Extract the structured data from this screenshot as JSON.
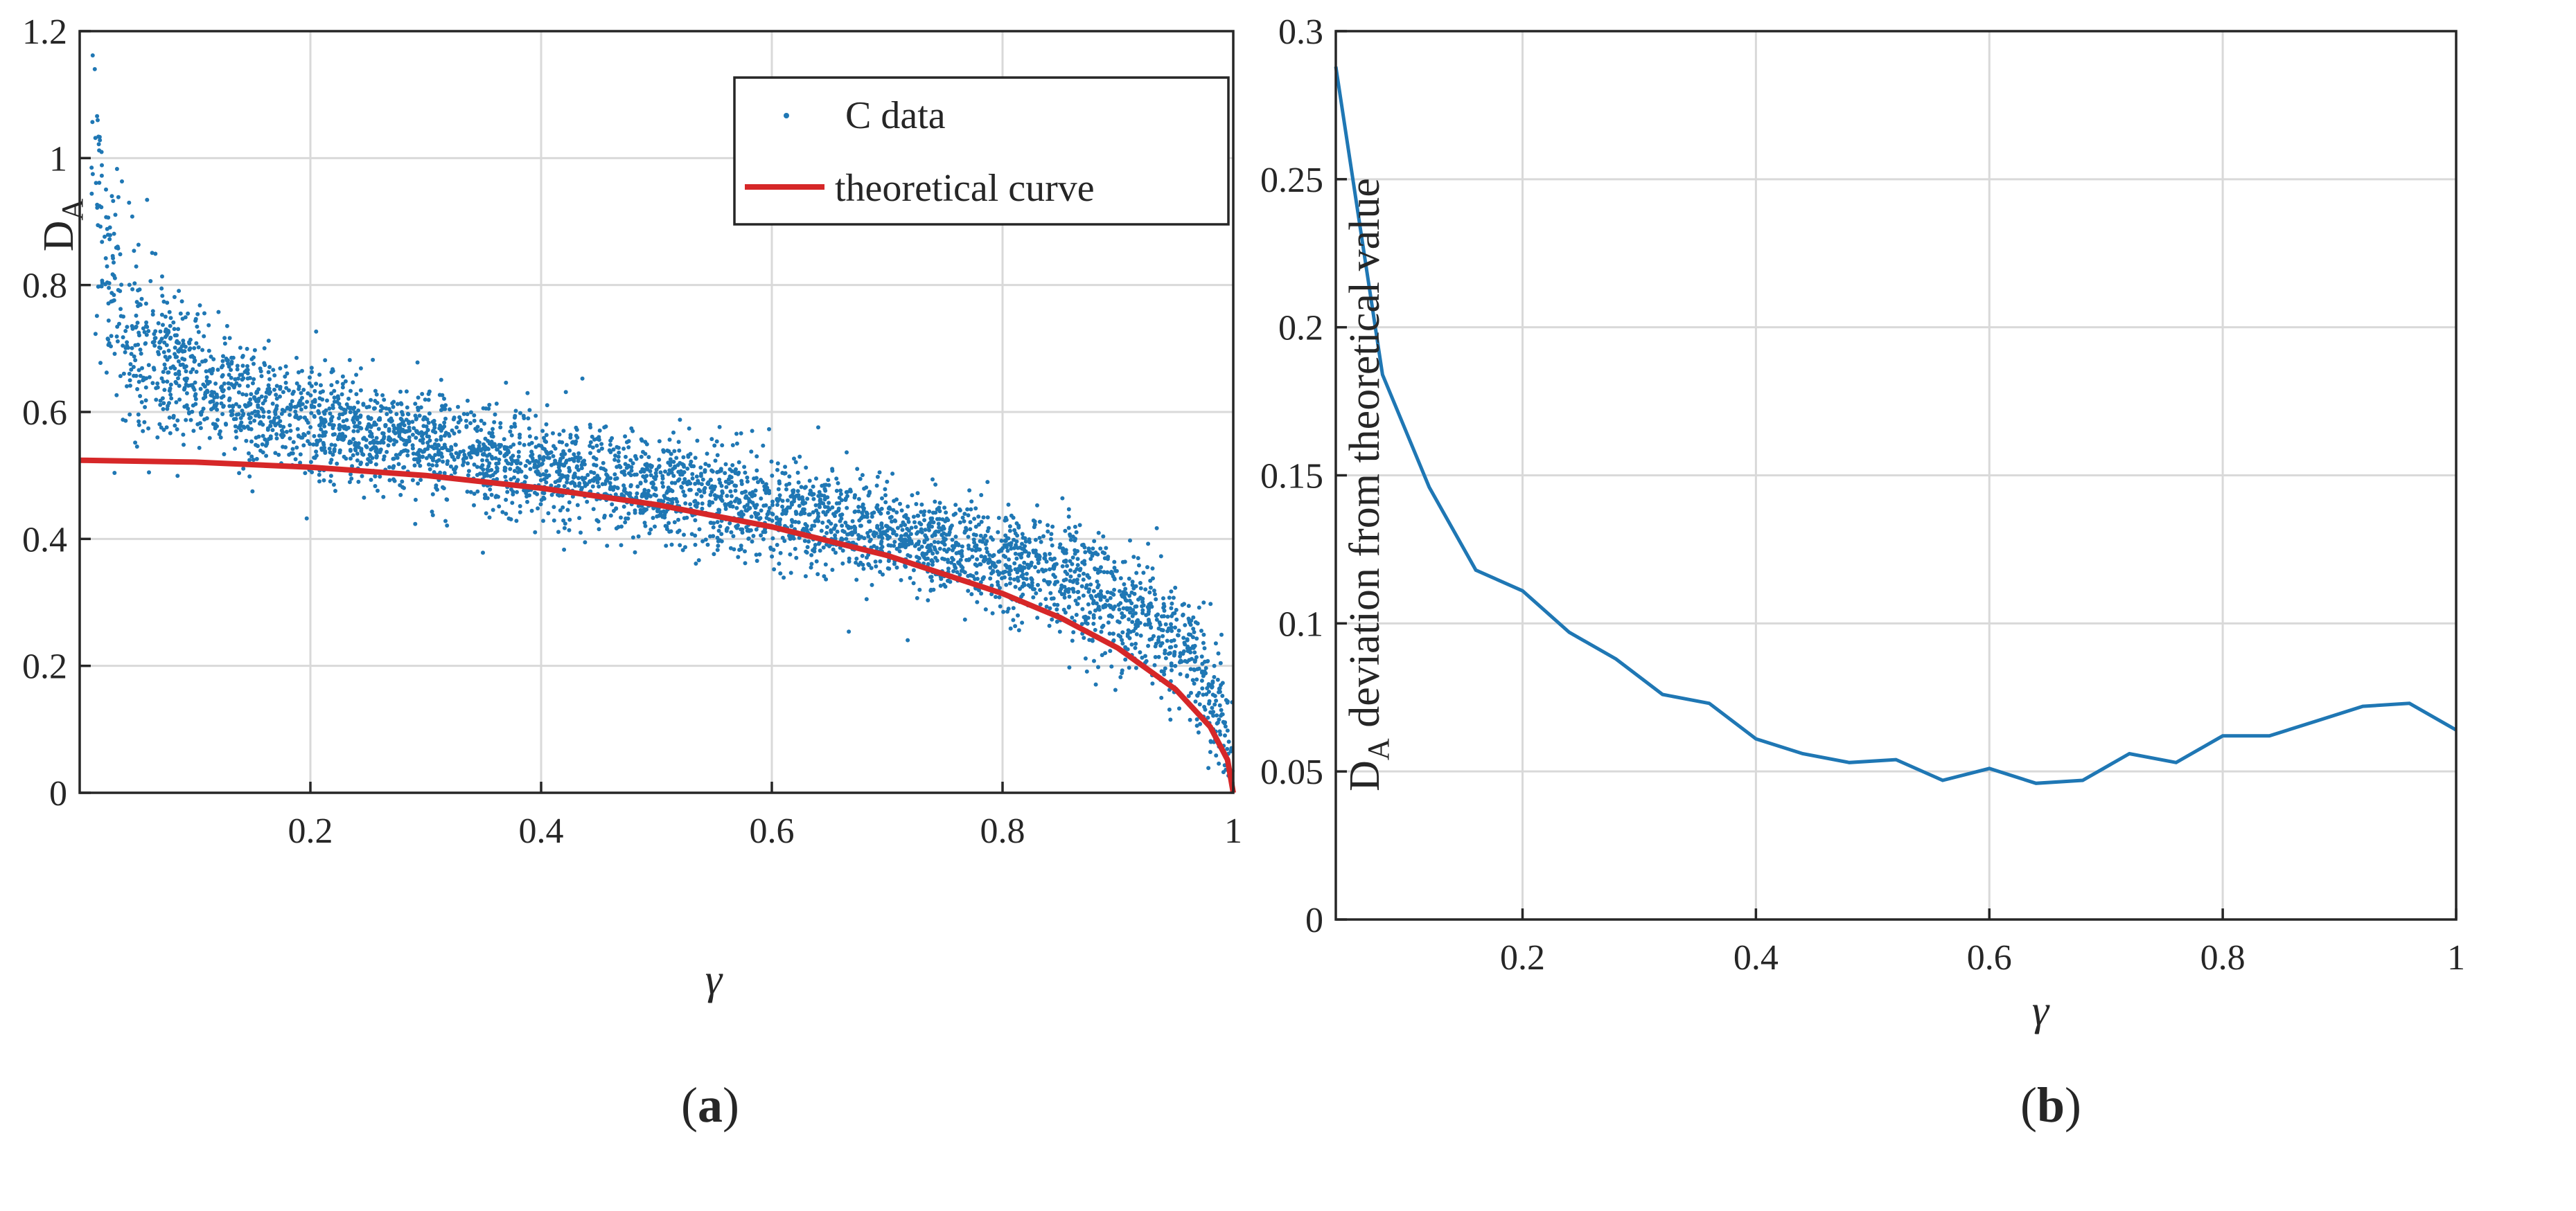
{
  "chart_data": [
    {
      "id": "a",
      "type": "scatter",
      "caption": "a",
      "xlabel": "γ",
      "ylabel_main": "D",
      "ylabel_sub": "A",
      "xlim": [
        0,
        1
      ],
      "ylim": [
        0,
        1.2
      ],
      "xticks": [
        0.2,
        0.4,
        0.6,
        0.8,
        1
      ],
      "xtick_labels": [
        "0.2",
        "0.4",
        "0.6",
        "0.8",
        "1"
      ],
      "yticks": [
        0,
        0.2,
        0.4,
        0.6,
        0.8,
        1,
        1.2
      ],
      "ytick_labels": [
        "0",
        "0.2",
        "0.4",
        "0.6",
        "0.8",
        "1",
        "1.2"
      ],
      "grid": true,
      "legend_position": "top-right",
      "series": [
        {
          "name": "C data",
          "kind": "scatter",
          "color": "#1f77b4",
          "note": "about 5000 points spread around the trend below",
          "trend_x": [
            0.01,
            0.03,
            0.05,
            0.08,
            0.1,
            0.15,
            0.2,
            0.3,
            0.4,
            0.5,
            0.6,
            0.7,
            0.8,
            0.85,
            0.9,
            0.95,
            0.97,
            0.99,
            1.0
          ],
          "trend_y": [
            0.95,
            0.78,
            0.7,
            0.67,
            0.65,
            0.61,
            0.585,
            0.55,
            0.515,
            0.48,
            0.445,
            0.41,
            0.365,
            0.34,
            0.3,
            0.24,
            0.2,
            0.12,
            0.05
          ],
          "spread_sd": [
            0.13,
            0.1,
            0.075,
            0.06,
            0.05,
            0.045,
            0.045,
            0.04,
            0.04,
            0.04,
            0.04,
            0.04,
            0.04,
            0.045,
            0.045,
            0.05,
            0.05,
            0.05,
            0.04
          ]
        },
        {
          "name": "theoretical curve",
          "kind": "line",
          "color": "#d62728",
          "x": [
            0,
            0.1,
            0.2,
            0.3,
            0.4,
            0.5,
            0.6,
            0.7,
            0.8,
            0.85,
            0.9,
            0.95,
            0.98,
            0.995,
            1.0
          ],
          "y": [
            0.524,
            0.521,
            0.513,
            0.5,
            0.48,
            0.454,
            0.419,
            0.374,
            0.314,
            0.276,
            0.228,
            0.163,
            0.104,
            0.052,
            0.0
          ]
        }
      ]
    },
    {
      "id": "b",
      "type": "line",
      "caption": "b",
      "xlabel": "γ",
      "ylabel_main": "D",
      "ylabel_sub": "A",
      "ylabel_rest": " deviation from theoretical value",
      "xlim": [
        0.04,
        1
      ],
      "ylim": [
        0,
        0.3
      ],
      "xticks": [
        0.2,
        0.4,
        0.6,
        0.8,
        1
      ],
      "xtick_labels": [
        "0.2",
        "0.4",
        "0.6",
        "0.8",
        "1"
      ],
      "yticks": [
        0,
        0.05,
        0.1,
        0.15,
        0.2,
        0.25,
        0.3
      ],
      "ytick_labels": [
        "0",
        "0.05",
        "0.1",
        "0.15",
        "0.2",
        "0.25",
        "0.3"
      ],
      "grid": true,
      "series": [
        {
          "name": "deviation",
          "color": "#1f77b4",
          "x": [
            0.04,
            0.08,
            0.12,
            0.16,
            0.2,
            0.24,
            0.28,
            0.32,
            0.36,
            0.4,
            0.44,
            0.48,
            0.52,
            0.56,
            0.6,
            0.64,
            0.68,
            0.72,
            0.76,
            0.8,
            0.84,
            0.88,
            0.92,
            0.96,
            1.0
          ],
          "y": [
            0.288,
            0.184,
            0.146,
            0.118,
            0.111,
            0.097,
            0.088,
            0.076,
            0.073,
            0.061,
            0.056,
            0.053,
            0.054,
            0.047,
            0.051,
            0.046,
            0.047,
            0.056,
            0.053,
            0.062,
            0.062,
            0.067,
            0.072,
            0.073,
            0.064
          ]
        }
      ]
    }
  ]
}
